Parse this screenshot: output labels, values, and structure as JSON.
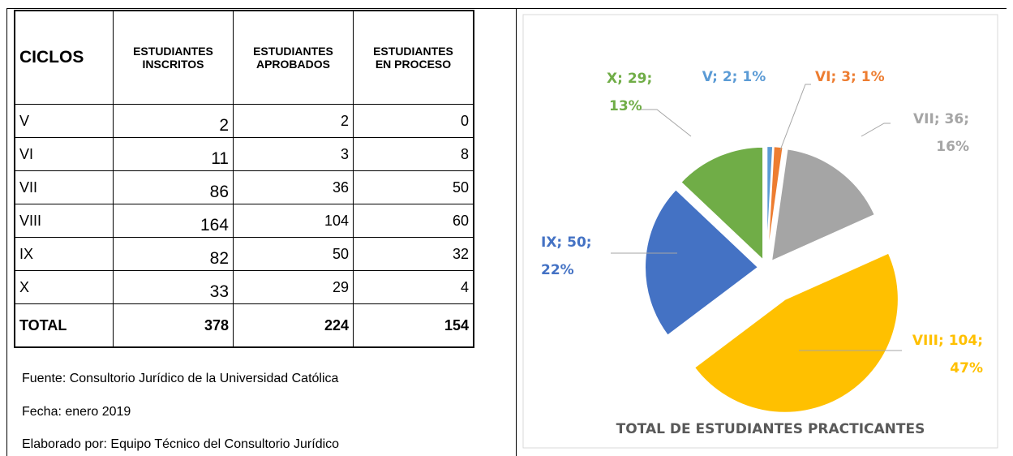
{
  "table": {
    "header": [
      [
        "CICLOS"
      ],
      [
        "ESTUDIANTES",
        "INSCRITOS"
      ],
      [
        "ESTUDIANTES",
        "APROBADOS"
      ],
      [
        "ESTUDIANTES",
        "EN PROCESO"
      ]
    ],
    "rows": [
      [
        "V",
        2,
        2,
        0
      ],
      [
        "VI",
        11,
        3,
        8
      ],
      [
        "VII",
        86,
        36,
        50
      ],
      [
        "VIII",
        164,
        104,
        60
      ],
      [
        "IX",
        82,
        50,
        32
      ],
      [
        "X",
        33,
        29,
        4
      ]
    ],
    "total": [
      "TOTAL",
      378,
      224,
      154
    ]
  },
  "notes": [
    "Fuente: Consultorio Jurídico de la Universidad Católica",
    "Fecha: enero 2019",
    "Elaborado por: Equipo Técnico del Consultorio Jurídico"
  ],
  "chart_data": {
    "type": "pie",
    "title": "TOTAL DE ESTUDIANTES PRACTICANTES",
    "values": [
      2,
      3,
      36,
      104,
      50,
      29
    ],
    "value_labels": [
      [
        "V; 2; 1%"
      ],
      [
        "VI; 3; 1%"
      ],
      [
        "VII; 36;",
        "16%"
      ],
      [
        "VIII; 104;",
        "47%"
      ],
      [
        "IX; 50;",
        "22%"
      ],
      [
        "X; 29;",
        "13%"
      ]
    ],
    "colors": [
      "#5b9bd5",
      "#ed7d31",
      "#a5a5a5",
      "#ffc000",
      "#4472c4",
      "#70ad47"
    ]
  }
}
